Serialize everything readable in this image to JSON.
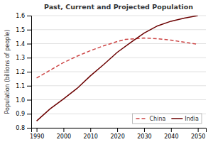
{
  "chart_data": {
    "type": "line",
    "title": "Past, Current and Projected Population",
    "y_label": "Population (billions of people)",
    "series": [
      {
        "name": "China",
        "color": "#cc4444",
        "line_style": "dashed",
        "x": [
          1990,
          1995,
          2000,
          2005,
          2010,
          2015,
          2020,
          2023,
          2030,
          2035,
          2040,
          2045,
          2050
        ],
        "values": [
          1.155,
          1.21,
          1.265,
          1.31,
          1.35,
          1.385,
          1.415,
          1.43,
          1.44,
          1.435,
          1.425,
          1.41,
          1.395
        ]
      },
      {
        "name": "India",
        "color": "#6b0000",
        "line_style": "solid",
        "x": [
          1990,
          1995,
          2000,
          2005,
          2010,
          2015,
          2020,
          2025,
          2030,
          2035,
          2040,
          2045,
          2050
        ],
        "values": [
          0.849,
          0.935,
          1.006,
          1.08,
          1.17,
          1.252,
          1.338,
          1.408,
          1.475,
          1.527,
          1.56,
          1.582,
          1.6
        ]
      }
    ],
    "xlim": [
      1988,
      2053
    ],
    "xticks": [
      1990,
      2000,
      2010,
      2020,
      2030,
      2040,
      2050
    ],
    "ylim": [
      0.8,
      1.6
    ],
    "yticks": [
      0.8,
      0.9,
      {
        "value": 1.0,
        "label": "1.0"
      },
      1.1,
      1.2,
      1.3,
      1.4,
      1.5,
      1.6
    ],
    "grid": true,
    "legend": "lower right"
  }
}
